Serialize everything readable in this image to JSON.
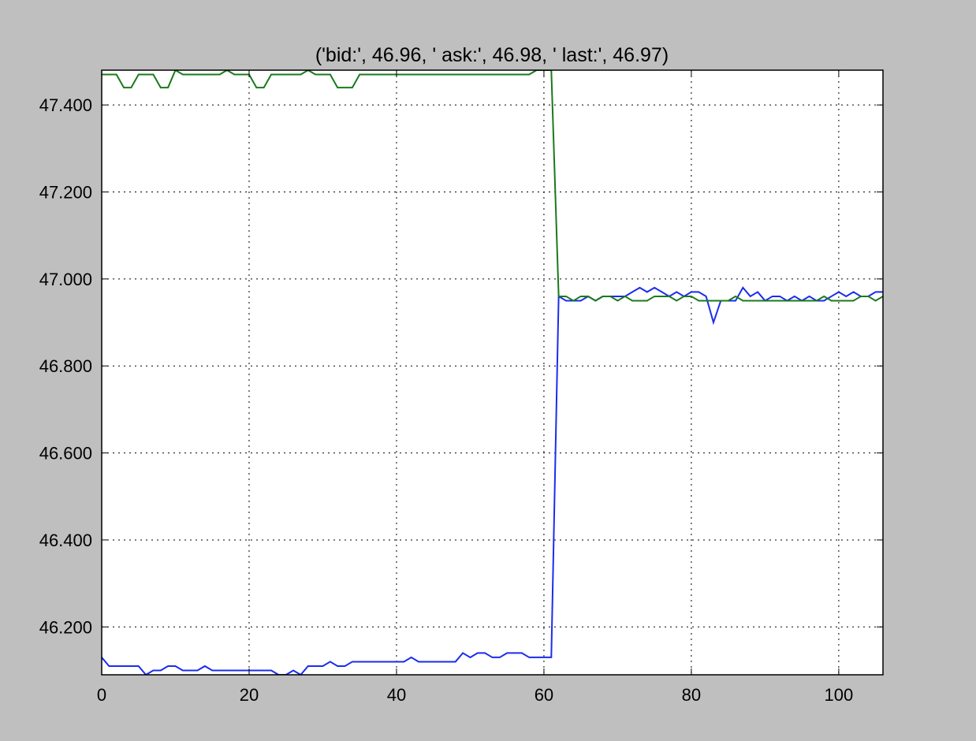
{
  "chart_data": {
    "type": "line",
    "title": "('bid:', 46.96, ' ask:', 46.98, ' last:', 46.97)",
    "xlabel": "",
    "ylabel": "",
    "xlim": [
      0,
      106
    ],
    "ylim": [
      46.09,
      47.48
    ],
    "grid": true,
    "grid_style": "dotted",
    "legend": "none",
    "x_ticks": [
      0,
      20,
      40,
      60,
      80,
      100
    ],
    "x_tick_labels": [
      "0",
      "20",
      "40",
      "60",
      "80",
      "100"
    ],
    "y_ticks": [
      46.2,
      46.4,
      46.6,
      46.8,
      47.0,
      47.2,
      47.4
    ],
    "y_tick_labels": [
      "46.200",
      "46.400",
      "46.600",
      "46.800",
      "47.000",
      "47.200",
      "47.400"
    ],
    "series": [
      {
        "color": "#1a2cf0",
        "values": [
          46.13,
          46.11,
          46.11,
          46.11,
          46.11,
          46.11,
          46.09,
          46.1,
          46.1,
          46.11,
          46.11,
          46.1,
          46.1,
          46.1,
          46.11,
          46.1,
          46.1,
          46.1,
          46.1,
          46.1,
          46.1,
          46.1,
          46.1,
          46.1,
          46.09,
          46.09,
          46.1,
          46.09,
          46.11,
          46.11,
          46.11,
          46.12,
          46.11,
          46.11,
          46.12,
          46.12,
          46.12,
          46.12,
          46.12,
          46.12,
          46.12,
          46.12,
          46.13,
          46.12,
          46.12,
          46.12,
          46.12,
          46.12,
          46.12,
          46.14,
          46.13,
          46.14,
          46.14,
          46.13,
          46.13,
          46.14,
          46.14,
          46.14,
          46.13,
          46.13,
          46.13,
          46.13,
          46.96,
          46.95,
          46.95,
          46.95,
          46.96,
          46.95,
          46.96,
          46.96,
          46.96,
          46.96,
          46.97,
          46.98,
          46.97,
          46.98,
          46.97,
          46.96,
          46.97,
          46.96,
          46.97,
          46.97,
          46.96,
          46.9,
          46.95,
          46.95,
          46.95,
          46.98,
          46.96,
          46.97,
          46.95,
          46.96,
          46.96,
          46.95,
          46.96,
          46.95,
          46.96,
          46.95,
          46.95,
          46.96,
          46.97,
          46.96,
          46.97,
          46.96,
          46.96,
          46.97,
          46.97
        ]
      },
      {
        "color": "#1a7a1a",
        "values": [
          47.47,
          47.47,
          47.47,
          47.44,
          47.44,
          47.47,
          47.47,
          47.47,
          47.44,
          47.44,
          47.48,
          47.47,
          47.47,
          47.47,
          47.47,
          47.47,
          47.47,
          47.48,
          47.47,
          47.47,
          47.47,
          47.44,
          47.44,
          47.47,
          47.47,
          47.47,
          47.47,
          47.47,
          47.48,
          47.47,
          47.47,
          47.47,
          47.44,
          47.44,
          47.44,
          47.47,
          47.47,
          47.47,
          47.47,
          47.47,
          47.47,
          47.47,
          47.47,
          47.47,
          47.47,
          47.47,
          47.47,
          47.47,
          47.47,
          47.47,
          47.47,
          47.47,
          47.47,
          47.47,
          47.47,
          47.47,
          47.47,
          47.47,
          47.47,
          47.48,
          47.48,
          47.48,
          46.96,
          46.96,
          46.95,
          46.96,
          46.96,
          46.95,
          46.96,
          46.96,
          46.95,
          46.96,
          46.95,
          46.95,
          46.95,
          46.96,
          46.96,
          46.96,
          46.95,
          46.96,
          46.96,
          46.95,
          46.95,
          46.95,
          46.95,
          46.95,
          46.96,
          46.95,
          46.95,
          46.95,
          46.95,
          46.95,
          46.95,
          46.95,
          46.95,
          46.95,
          46.95,
          46.95,
          46.96,
          46.95,
          46.95,
          46.95,
          46.95,
          46.96,
          46.96,
          46.95,
          46.96
        ]
      }
    ]
  }
}
